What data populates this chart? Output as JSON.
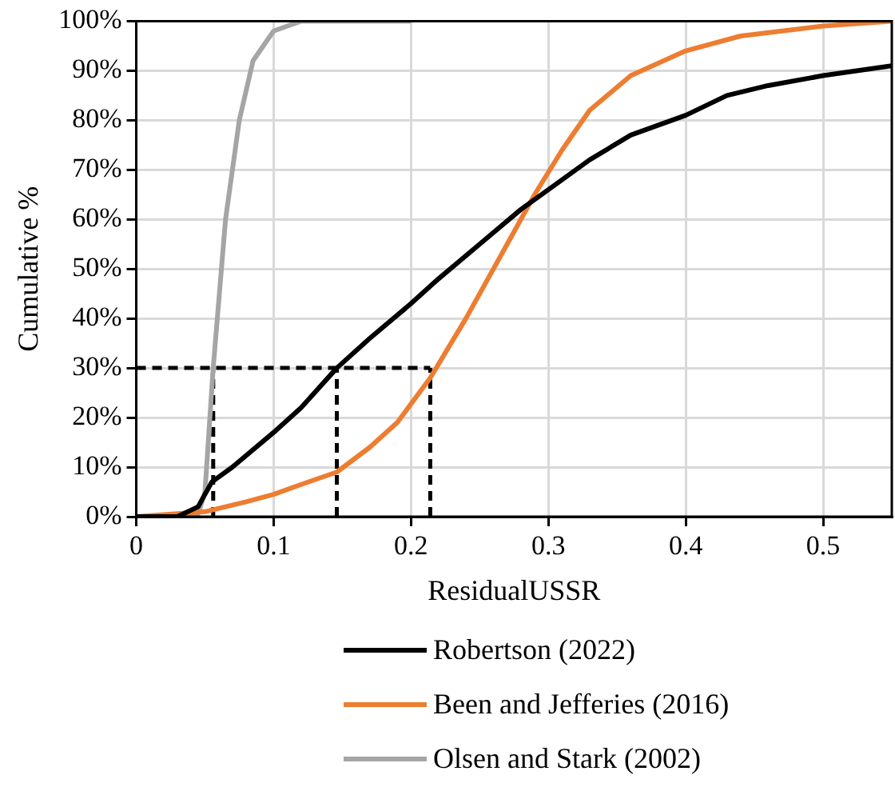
{
  "chart_data": {
    "type": "line",
    "xlabel": "ResidualUSSR",
    "ylabel": "Cumulative %",
    "xlim": [
      0,
      0.55
    ],
    "xticks": [
      0,
      0.1,
      0.2,
      0.3,
      0.4,
      0.5
    ],
    "ylim": [
      0,
      100
    ],
    "yticks": [
      {
        "value": 0,
        "label": "0%"
      },
      {
        "value": 10,
        "label": "10%"
      },
      {
        "value": 20,
        "label": "20%"
      },
      {
        "value": 30,
        "label": "30%"
      },
      {
        "value": 40,
        "label": "40%"
      },
      {
        "value": 50,
        "label": "50%"
      },
      {
        "value": 60,
        "label": "60%"
      },
      {
        "value": 70,
        "label": "70%"
      },
      {
        "value": 80,
        "label": "80%"
      },
      {
        "value": 90,
        "label": "90%"
      },
      {
        "value": 100,
        "label": "100%"
      }
    ],
    "grid": true,
    "legend": "bottom",
    "marker": "none",
    "line_style": "solid",
    "series": [
      {
        "name": "Robertson (2022)",
        "color": "#000000",
        "x": [
          0,
          0.03,
          0.045,
          0.055,
          0.07,
          0.1,
          0.12,
          0.146,
          0.17,
          0.2,
          0.22,
          0.25,
          0.28,
          0.3,
          0.33,
          0.36,
          0.4,
          0.43,
          0.46,
          0.5,
          0.55
        ],
        "values": [
          0,
          0,
          2,
          7,
          10,
          17,
          22,
          30,
          36,
          43,
          48,
          55,
          62,
          66,
          72,
          77,
          81,
          85,
          87,
          89,
          91
        ]
      },
      {
        "name": "Been and Jefferies (2016)",
        "color": "#ed7d31",
        "x": [
          0,
          0.05,
          0.08,
          0.1,
          0.12,
          0.146,
          0.17,
          0.19,
          0.214,
          0.24,
          0.27,
          0.29,
          0.31,
          0.33,
          0.36,
          0.4,
          0.44,
          0.5,
          0.55
        ],
        "values": [
          0,
          1,
          3,
          4.5,
          6.5,
          9,
          14,
          19,
          28,
          40,
          55,
          65,
          74,
          82,
          89,
          94,
          97,
          99,
          100
        ]
      },
      {
        "name": "Olsen and Stark (2002)",
        "color": "#a5a5a5",
        "x": [
          0,
          0.04,
          0.045,
          0.05,
          0.056,
          0.065,
          0.075,
          0.085,
          0.1,
          0.12,
          0.2
        ],
        "values": [
          0,
          0,
          0.5,
          5,
          30,
          60,
          80,
          92,
          98,
          100,
          100
        ]
      },
      {
        "color": "#000000",
        "line_style": "dashed",
        "x": [
          0,
          0.214
        ],
        "values": [
          30,
          30
        ]
      },
      {
        "color": "#000000",
        "line_style": "dashed",
        "x": [
          0.056,
          0.056
        ],
        "values": [
          0,
          30
        ]
      },
      {
        "color": "#000000",
        "line_style": "dashed",
        "x": [
          0.146,
          0.146
        ],
        "values": [
          0,
          30
        ]
      },
      {
        "color": "#000000",
        "line_style": "dashed",
        "x": [
          0.214,
          0.214
        ],
        "values": [
          0,
          30
        ]
      }
    ]
  }
}
